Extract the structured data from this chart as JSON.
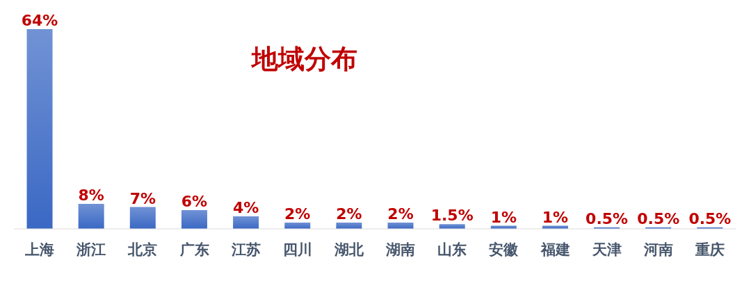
{
  "chart_data": {
    "type": "bar",
    "title": "地域分布",
    "categories": [
      "上海",
      "浙江",
      "北京",
      "广东",
      "江苏",
      "四川",
      "湖北",
      "湖南",
      "山东",
      "安徽",
      "福建",
      "天津",
      "河南",
      "重庆"
    ],
    "values": [
      64,
      8,
      7,
      6,
      4,
      2,
      2,
      2,
      1.5,
      1,
      1,
      0.5,
      0.5,
      0.5
    ],
    "value_labels": [
      "64%",
      "8%",
      "7%",
      "6%",
      "4%",
      "2%",
      "2%",
      "2%",
      "1.5%",
      "1%",
      "1%",
      "0.5%",
      "0.5%",
      "0.5%"
    ],
    "color": "#3a68c4",
    "grid": false,
    "legend": false
  }
}
